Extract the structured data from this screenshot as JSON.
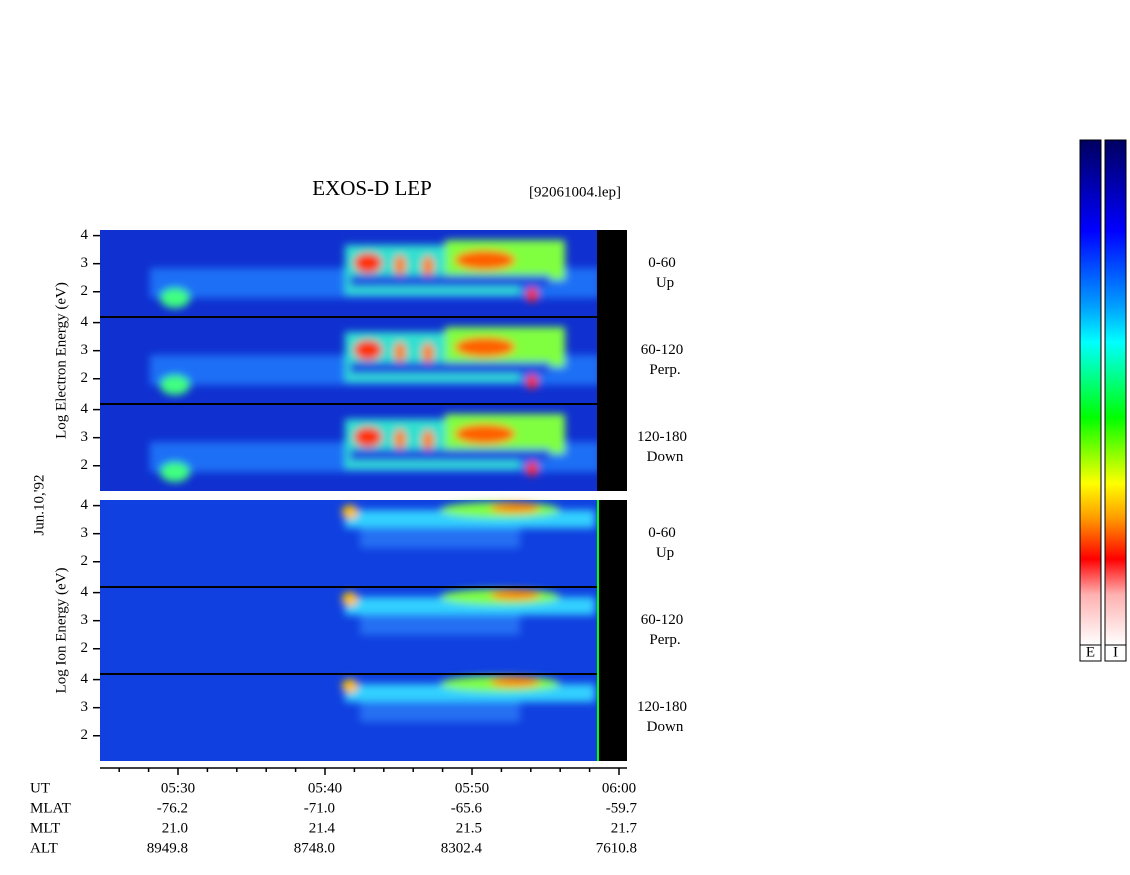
{
  "title": "EXOS-D LEP",
  "file": "[92061004.lep]",
  "date": "Jun.10,'92",
  "groups": [
    {
      "ylabel": "Log  Electron  Energy (eV)",
      "ylim": [
        1.1,
        4.2
      ],
      "yticks": [
        2,
        3,
        4
      ],
      "panels": [
        {
          "range": "0-60",
          "dir": "Up"
        },
        {
          "range": "60-120",
          "dir": "Perp."
        },
        {
          "range": "120-180",
          "dir": "Down"
        }
      ]
    },
    {
      "ylabel": "Log  Ion  Energy (eV)",
      "ylim": [
        1.1,
        4.2
      ],
      "yticks": [
        2,
        3,
        4
      ],
      "panels": [
        {
          "range": "0-60",
          "dir": "Up"
        },
        {
          "range": "60-120",
          "dir": "Perp."
        },
        {
          "range": "120-180",
          "dir": "Down"
        }
      ]
    }
  ],
  "time_label": "UT",
  "time_ticks": [
    "05:30",
    "05:40",
    "05:50",
    "06:00"
  ],
  "ephemeris": [
    {
      "label": "MLAT",
      "values": [
        "-76.2",
        "-71.0",
        "-65.6",
        "-59.7"
      ]
    },
    {
      "label": "MLT",
      "values": [
        "21.0",
        "21.4",
        "21.5",
        "21.7"
      ]
    },
    {
      "label": "ALT",
      "values": [
        "8949.8",
        "8748.0",
        "8302.4",
        "7610.8"
      ]
    }
  ],
  "colorbar_labels": [
    "E",
    "I"
  ]
}
